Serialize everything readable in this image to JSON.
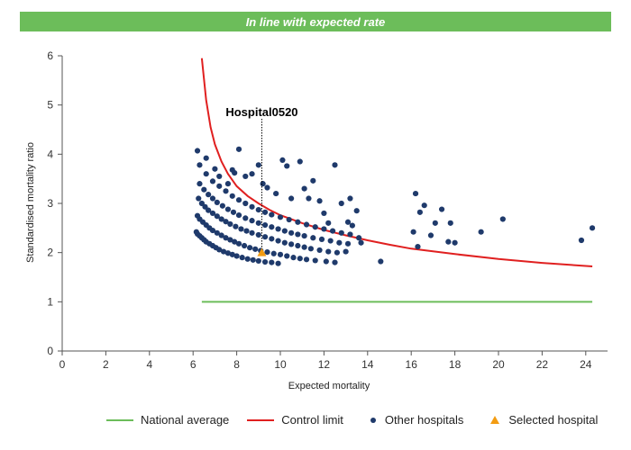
{
  "banner": {
    "text": "In line with expected rate",
    "color": "#6cbd5a"
  },
  "legend": {
    "national_average": "National average",
    "control_limit": "Control limit",
    "other_hospitals": "Other hospitals",
    "selected_hospital": "Selected hospital"
  },
  "colors": {
    "national": "#6cbd5a",
    "control": "#e02020",
    "dots": "#1f3a6b",
    "selected": "#f39c12"
  },
  "chart_data": {
    "type": "scatter",
    "xlabel": "Expected mortality",
    "ylabel": "Standardised mortality ratio",
    "xlim": [
      0,
      25
    ],
    "ylim": [
      0,
      6
    ],
    "xticks": [
      0,
      2,
      4,
      6,
      8,
      10,
      12,
      14,
      16,
      18,
      20,
      22,
      24
    ],
    "yticks": [
      0,
      1,
      2,
      3,
      4,
      5,
      6
    ],
    "grid": false,
    "legend_position": "bottom",
    "annotation": "Hospital0520",
    "national_average": {
      "x": [
        6.4,
        24.3
      ],
      "y": [
        1,
        1
      ]
    },
    "control_limit": {
      "x": [
        6.4,
        6.6,
        6.8,
        7.0,
        7.3,
        7.6,
        8.0,
        8.5,
        9.0,
        9.5,
        10,
        11,
        12,
        13,
        14,
        15,
        16,
        18,
        20,
        22,
        24.3
      ],
      "y": [
        5.95,
        5.1,
        4.55,
        4.2,
        3.85,
        3.6,
        3.35,
        3.15,
        3.0,
        2.87,
        2.76,
        2.6,
        2.46,
        2.35,
        2.25,
        2.16,
        2.08,
        1.97,
        1.87,
        1.79,
        1.72
      ]
    },
    "series": [
      {
        "name": "Other hospitals",
        "points": [
          [
            6.15,
            2.42
          ],
          [
            6.2,
            2.38
          ],
          [
            6.3,
            2.34
          ],
          [
            6.4,
            2.3
          ],
          [
            6.5,
            2.26
          ],
          [
            6.6,
            2.22
          ],
          [
            6.75,
            2.18
          ],
          [
            6.9,
            2.14
          ],
          [
            7.05,
            2.1
          ],
          [
            7.2,
            2.06
          ],
          [
            7.4,
            2.02
          ],
          [
            7.6,
            1.99
          ],
          [
            7.8,
            1.96
          ],
          [
            8.0,
            1.93
          ],
          [
            8.25,
            1.9
          ],
          [
            8.5,
            1.87
          ],
          [
            8.75,
            1.85
          ],
          [
            9.0,
            1.83
          ],
          [
            9.3,
            1.81
          ],
          [
            9.6,
            1.8
          ],
          [
            9.9,
            1.78
          ],
          [
            6.2,
            2.75
          ],
          [
            6.3,
            2.68
          ],
          [
            6.45,
            2.62
          ],
          [
            6.6,
            2.56
          ],
          [
            6.75,
            2.5
          ],
          [
            6.9,
            2.45
          ],
          [
            7.1,
            2.4
          ],
          [
            7.3,
            2.35
          ],
          [
            7.5,
            2.3
          ],
          [
            7.7,
            2.26
          ],
          [
            7.9,
            2.22
          ],
          [
            8.1,
            2.18
          ],
          [
            8.35,
            2.14
          ],
          [
            8.6,
            2.1
          ],
          [
            8.85,
            2.07
          ],
          [
            9.1,
            2.04
          ],
          [
            9.4,
            2.01
          ],
          [
            9.7,
            1.98
          ],
          [
            10.0,
            1.96
          ],
          [
            10.3,
            1.93
          ],
          [
            10.6,
            1.9
          ],
          [
            10.9,
            1.88
          ],
          [
            11.2,
            1.86
          ],
          [
            11.6,
            1.84
          ],
          [
            12.1,
            1.82
          ],
          [
            12.5,
            1.8
          ],
          [
            6.25,
            3.1
          ],
          [
            6.4,
            3.0
          ],
          [
            6.55,
            2.93
          ],
          [
            6.7,
            2.86
          ],
          [
            6.9,
            2.8
          ],
          [
            7.1,
            2.74
          ],
          [
            7.3,
            2.68
          ],
          [
            7.5,
            2.63
          ],
          [
            7.7,
            2.58
          ],
          [
            7.95,
            2.53
          ],
          [
            8.2,
            2.48
          ],
          [
            8.45,
            2.44
          ],
          [
            8.7,
            2.4
          ],
          [
            9.0,
            2.36
          ],
          [
            9.3,
            2.32
          ],
          [
            9.6,
            2.28
          ],
          [
            9.9,
            2.24
          ],
          [
            10.2,
            2.2
          ],
          [
            10.5,
            2.17
          ],
          [
            10.8,
            2.14
          ],
          [
            11.1,
            2.11
          ],
          [
            11.4,
            2.08
          ],
          [
            11.8,
            2.05
          ],
          [
            12.2,
            2.02
          ],
          [
            12.6,
            2.0
          ],
          [
            13.0,
            2.02
          ],
          [
            6.3,
            3.4
          ],
          [
            6.5,
            3.28
          ],
          [
            6.7,
            3.18
          ],
          [
            6.9,
            3.1
          ],
          [
            7.1,
            3.02
          ],
          [
            7.35,
            2.95
          ],
          [
            7.6,
            2.88
          ],
          [
            7.85,
            2.82
          ],
          [
            8.1,
            2.76
          ],
          [
            8.4,
            2.7
          ],
          [
            8.7,
            2.65
          ],
          [
            9.0,
            2.6
          ],
          [
            9.3,
            2.56
          ],
          [
            9.6,
            2.52
          ],
          [
            9.9,
            2.48
          ],
          [
            10.2,
            2.44
          ],
          [
            10.5,
            2.4
          ],
          [
            10.8,
            2.37
          ],
          [
            11.1,
            2.34
          ],
          [
            11.5,
            2.3
          ],
          [
            11.9,
            2.27
          ],
          [
            12.3,
            2.24
          ],
          [
            12.7,
            2.2
          ],
          [
            13.1,
            2.18
          ],
          [
            6.6,
            3.6
          ],
          [
            6.9,
            3.45
          ],
          [
            7.2,
            3.35
          ],
          [
            7.5,
            3.25
          ],
          [
            7.8,
            3.15
          ],
          [
            8.1,
            3.07
          ],
          [
            8.4,
            3.0
          ],
          [
            8.7,
            2.93
          ],
          [
            9.0,
            2.87
          ],
          [
            9.3,
            2.82
          ],
          [
            9.6,
            2.77
          ],
          [
            10.0,
            2.72
          ],
          [
            10.4,
            2.67
          ],
          [
            10.8,
            2.62
          ],
          [
            11.2,
            2.57
          ],
          [
            11.6,
            2.52
          ],
          [
            12.0,
            2.48
          ],
          [
            12.4,
            2.44
          ],
          [
            12.8,
            2.4
          ],
          [
            13.2,
            2.37
          ],
          [
            13.6,
            2.3
          ],
          [
            6.2,
            4.07
          ],
          [
            6.3,
            3.78
          ],
          [
            6.6,
            3.92
          ],
          [
            7.0,
            3.7
          ],
          [
            7.2,
            3.55
          ],
          [
            7.6,
            3.4
          ],
          [
            7.8,
            3.68
          ],
          [
            7.9,
            3.62
          ],
          [
            8.1,
            4.1
          ],
          [
            8.4,
            3.55
          ],
          [
            8.7,
            3.6
          ],
          [
            9.0,
            3.78
          ],
          [
            9.2,
            3.4
          ],
          [
            9.4,
            3.32
          ],
          [
            9.8,
            3.2
          ],
          [
            10.1,
            3.88
          ],
          [
            10.3,
            3.76
          ],
          [
            10.5,
            3.1
          ],
          [
            10.9,
            3.85
          ],
          [
            11.1,
            3.3
          ],
          [
            11.3,
            3.1
          ],
          [
            11.5,
            3.46
          ],
          [
            11.8,
            3.05
          ],
          [
            12.0,
            2.8
          ],
          [
            12.2,
            2.6
          ],
          [
            12.5,
            3.78
          ],
          [
            12.8,
            3.0
          ],
          [
            13.1,
            2.62
          ],
          [
            13.2,
            3.1
          ],
          [
            13.3,
            2.55
          ],
          [
            13.5,
            2.85
          ],
          [
            13.7,
            2.2
          ],
          [
            14.6,
            1.82
          ],
          [
            16.1,
            2.42
          ],
          [
            16.2,
            3.2
          ],
          [
            16.3,
            2.12
          ],
          [
            16.4,
            2.82
          ],
          [
            16.6,
            2.96
          ],
          [
            16.9,
            2.35
          ],
          [
            17.1,
            2.6
          ],
          [
            17.4,
            2.88
          ],
          [
            17.7,
            2.22
          ],
          [
            17.8,
            2.6
          ],
          [
            18.0,
            2.2
          ],
          [
            19.2,
            2.42
          ],
          [
            20.2,
            2.68
          ],
          [
            23.8,
            2.25
          ],
          [
            24.3,
            2.5
          ]
        ]
      },
      {
        "name": "Selected hospital",
        "points": [
          [
            9.15,
            2.0
          ]
        ]
      }
    ]
  }
}
